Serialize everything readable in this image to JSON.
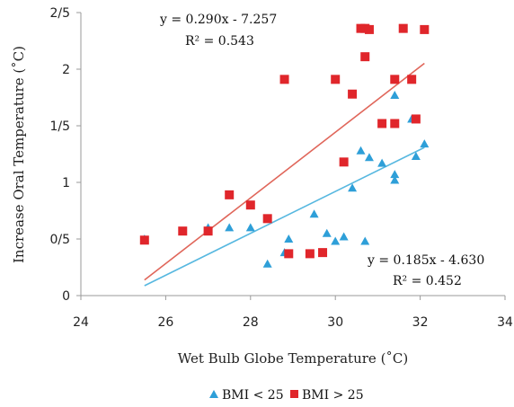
{
  "chart_data": {
    "type": "scatter",
    "xlabel": "Wet Bulb Globe Temperature (˚C)",
    "ylabel": "Increase Oral Temperature (˚C)",
    "xlim": [
      24,
      34
    ],
    "ylim": [
      0,
      2.5
    ],
    "x_ticks": [
      24,
      26,
      28,
      30,
      32,
      34
    ],
    "x_tick_labels": [
      "24",
      "26",
      "28",
      "30",
      "32",
      "34"
    ],
    "y_ticks": [
      0,
      0.5,
      1,
      1.5,
      2,
      2.5
    ],
    "y_tick_labels": [
      "0",
      "0/5",
      "1",
      "1/5",
      "2",
      "2/5"
    ],
    "grid": false,
    "legend_position": "bottom-center",
    "series": [
      {
        "name": "BMI < 25",
        "marker": "triangle",
        "color": "#2e9fd8",
        "x": [
          25.5,
          27.0,
          27.5,
          28.0,
          28.4,
          28.8,
          28.9,
          29.5,
          29.8,
          30.0,
          30.2,
          30.4,
          30.6,
          30.7,
          30.8,
          31.1,
          31.4,
          31.4,
          31.4,
          31.8,
          31.9,
          32.1
        ],
        "y": [
          0.5,
          0.6,
          0.6,
          0.6,
          0.28,
          0.38,
          0.5,
          0.72,
          0.55,
          0.48,
          0.52,
          0.95,
          1.28,
          0.48,
          1.22,
          1.17,
          1.02,
          1.07,
          1.77,
          1.56,
          1.23,
          1.34
        ]
      },
      {
        "name": "BMI > 25",
        "marker": "square",
        "color": "#e0262b",
        "x": [
          25.5,
          26.4,
          27.0,
          27.5,
          28.0,
          28.4,
          28.8,
          28.9,
          29.4,
          29.7,
          30.0,
          30.2,
          30.4,
          30.6,
          30.7,
          30.7,
          30.8,
          31.1,
          31.4,
          31.4,
          31.6,
          31.8,
          31.9,
          32.1
        ],
        "y": [
          0.49,
          0.57,
          0.57,
          0.89,
          0.8,
          0.68,
          1.91,
          0.37,
          0.37,
          0.38,
          1.91,
          1.18,
          1.78,
          2.36,
          2.11,
          2.36,
          2.35,
          1.52,
          1.52,
          1.91,
          2.36,
          1.91,
          1.56,
          2.35
        ]
      }
    ],
    "trendlines": [
      {
        "series": "BMI > 25",
        "color": "#e0665a",
        "x_range": [
          25.5,
          32.1
        ],
        "slope": 0.29,
        "intercept": -7.257
      },
      {
        "series": "BMI < 25",
        "color": "#57b8e0",
        "x_range": [
          25.5,
          32.1
        ],
        "slope": 0.185,
        "intercept": -4.63
      }
    ],
    "annotations": [
      {
        "id": "red_eq",
        "text": "y = 0.290x - 7.257"
      },
      {
        "id": "red_r2",
        "text": "R² = 0.543"
      },
      {
        "id": "blue_eq",
        "text": "y = 0.185x - 4.630"
      },
      {
        "id": "blue_r2",
        "text": "R² = 0.452"
      }
    ]
  }
}
